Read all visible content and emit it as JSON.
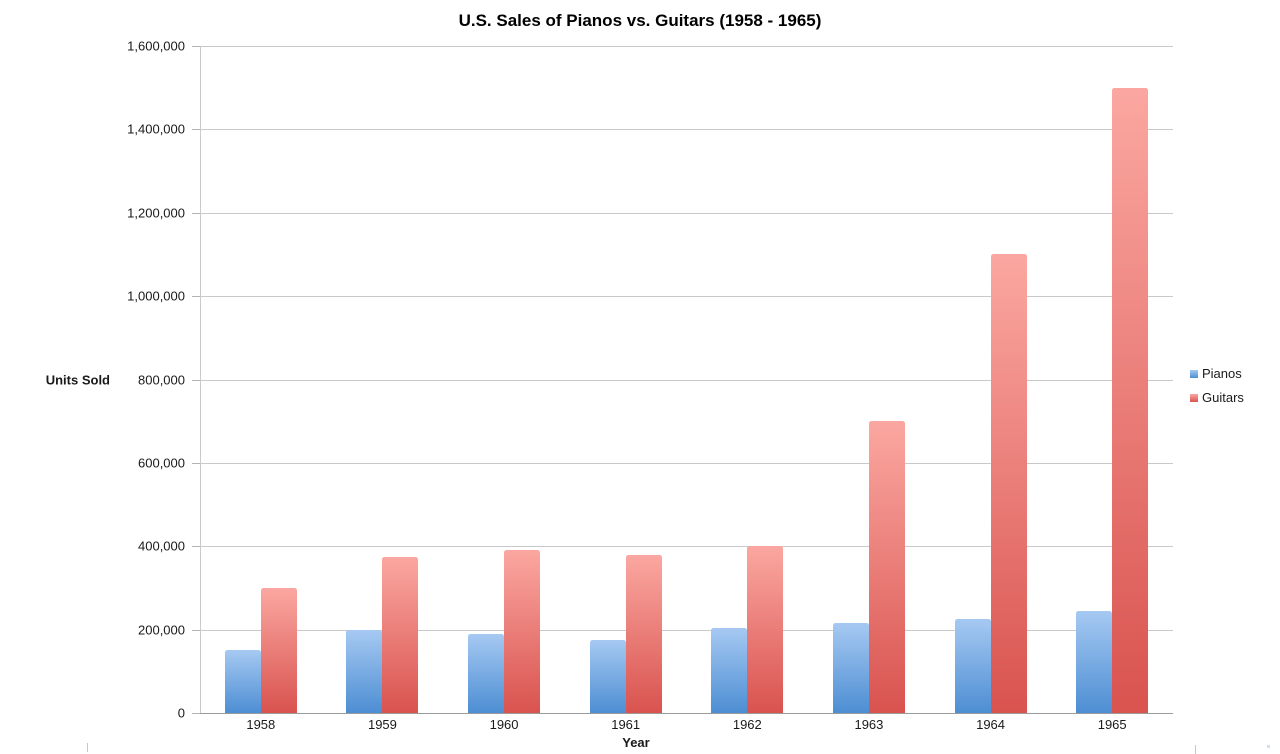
{
  "chart_data": {
    "type": "bar",
    "title": "U.S. Sales of Pianos vs. Guitars (1958 - 1965)",
    "xlabel": "Year",
    "ylabel": "Units Sold",
    "categories": [
      "1958",
      "1959",
      "1960",
      "1961",
      "1962",
      "1963",
      "1964",
      "1965"
    ],
    "series": [
      {
        "name": "Pianos",
        "color_top": "#a6c9f2",
        "color_bottom": "#4d8ed3",
        "values": [
          150000,
          200000,
          190000,
          175000,
          205000,
          215000,
          225000,
          245000
        ]
      },
      {
        "name": "Guitars",
        "color_top": "#fba7a1",
        "color_bottom": "#d9534f",
        "values": [
          300000,
          375000,
          390000,
          380000,
          400000,
          700000,
          1100000,
          1500000
        ]
      }
    ],
    "ylim": [
      0,
      1600000
    ],
    "ytick_interval": 200000,
    "ytick_labels": [
      "1,600,000",
      "1,400,000",
      "1,200,000",
      "1,000,000",
      "800,000",
      "600,000",
      "400,000",
      "200,000",
      "0"
    ],
    "grid": true,
    "legend_position": "right"
  }
}
